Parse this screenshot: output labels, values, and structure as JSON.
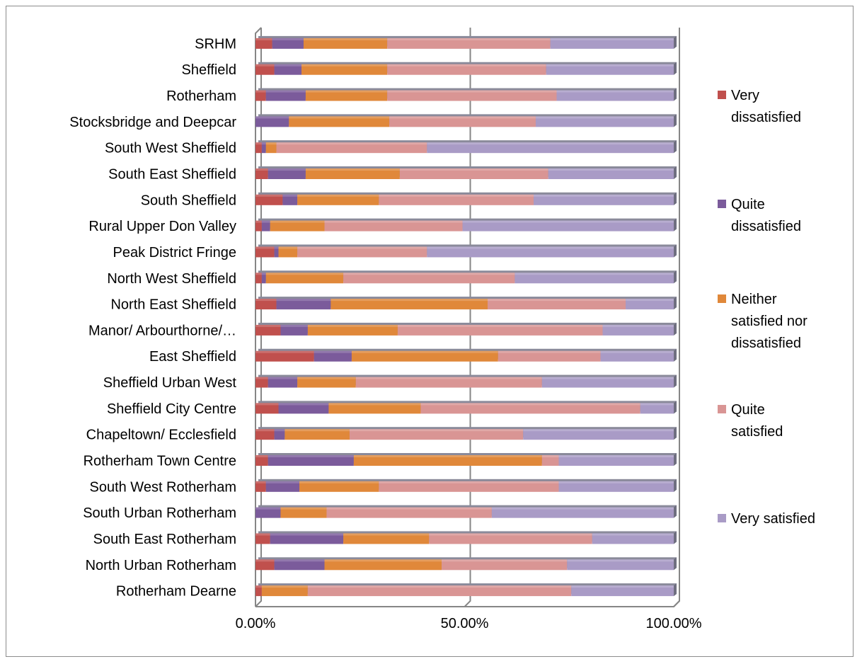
{
  "chart_data": {
    "type": "bar",
    "orientation": "horizontal",
    "stacked": "100%",
    "categories": [
      "SRHM",
      "Sheffield",
      "Rotherham",
      "Stocksbridge and Deepcar",
      "South West Sheffield",
      "South East Sheffield",
      "South Sheffield",
      "Rural Upper Don Valley",
      "Peak District Fringe",
      "North West Sheffield",
      "North East Sheffield",
      "Manor/ Arbourthorne/…",
      "East Sheffield",
      "Sheffield Urban West",
      "Sheffield City Centre",
      "Chapeltown/ Ecclesfield",
      "Rotherham Town Centre",
      "South West Rotherham",
      "South Urban Rotherham",
      "South East Rotherham",
      "North Urban Rotherham",
      "Rotherham Dearne"
    ],
    "series": [
      {
        "name": "Very dissatisfied",
        "color": "#c0504d",
        "values": [
          4,
          4.5,
          2.5,
          0,
          1.5,
          3,
          6.5,
          1.5,
          4.5,
          1.5,
          5,
          6,
          14,
          3,
          5.5,
          4.5,
          3,
          2.5,
          0,
          3.5,
          4.5,
          1.5
        ]
      },
      {
        "name": "Quite dissatisfied",
        "color": "#7b5b9b",
        "values": [
          7.5,
          6.5,
          9.5,
          8,
          1,
          9,
          3.5,
          2,
          1,
          1,
          13,
          6.5,
          9,
          7,
          12,
          2.5,
          20.5,
          8,
          6,
          17.5,
          12,
          0
        ]
      },
      {
        "name": "Neither satisfied nor dissatisfied",
        "color": "#e0883a",
        "values": [
          20,
          20.5,
          19.5,
          24,
          2.5,
          22.5,
          19.5,
          13,
          4.5,
          18.5,
          37.5,
          21.5,
          35,
          14,
          22,
          15.5,
          45,
          19,
          11,
          20.5,
          28,
          11
        ]
      },
      {
        "name": "Quite satisfied",
        "color": "#d99594",
        "values": [
          39,
          38,
          40.5,
          35,
          36,
          35.5,
          37,
          33,
          31,
          41,
          33,
          49,
          24.5,
          44.5,
          52.5,
          41.5,
          4,
          43,
          39.5,
          39,
          30,
          63
        ]
      },
      {
        "name": "Very satisfied",
        "color": "#a99bc6",
        "values": [
          29.5,
          30.5,
          28,
          33,
          59,
          30,
          33.5,
          50.5,
          59,
          38,
          11.5,
          17,
          17.5,
          31.5,
          8,
          36,
          27.5,
          27.5,
          43.5,
          19.5,
          25.5,
          24.5
        ]
      }
    ],
    "xlim": [
      0,
      100
    ],
    "x_tick_labels": [
      "0.00%",
      "50.00%",
      "100.00%"
    ],
    "grid": "vertical major gridlines",
    "legend_position": "right",
    "legend_labels": [
      "Very dissatisfied",
      "Quite dissatisfied",
      "Neither satisfied nor dissatisfied",
      "Quite satisfied",
      "Very satisfied"
    ]
  },
  "colors": {
    "wall": "#868686",
    "gridline": "#868686",
    "bar_back": "#8a8a9a"
  }
}
